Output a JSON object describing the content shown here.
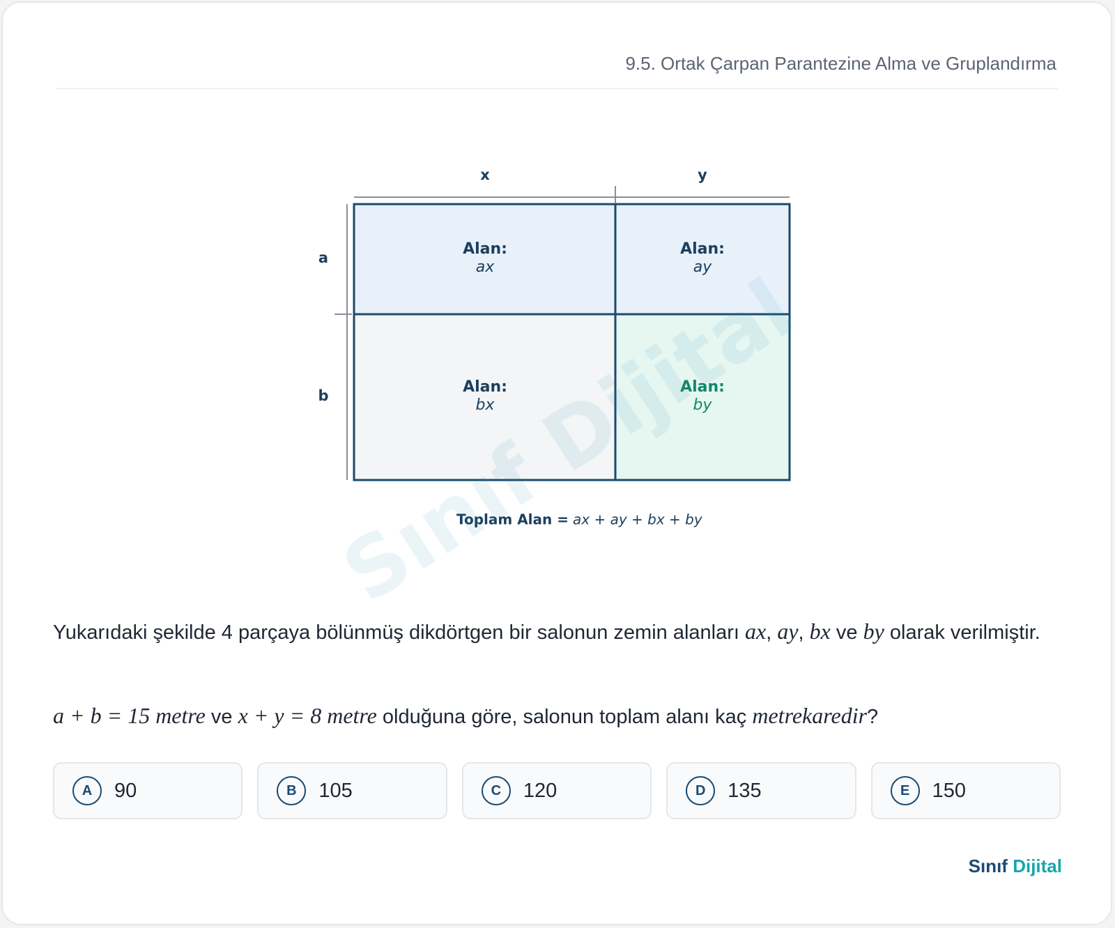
{
  "header": {
    "section": "9.5. Ortak Çarpan Parantezine Alma ve Gruplandırma"
  },
  "figure": {
    "top_labels": [
      "x",
      "y"
    ],
    "side_labels": [
      "a",
      "b"
    ],
    "cells": [
      {
        "title": "Alan:",
        "expr": "ax",
        "color": "#1b3f5e"
      },
      {
        "title": "Alan:",
        "expr": "ay",
        "color": "#1b3f5e"
      },
      {
        "title": "Alan:",
        "expr": "bx",
        "color": "#1b3f5e"
      },
      {
        "title": "Alan:",
        "expr": "by",
        "color": "#12876a"
      }
    ],
    "total": {
      "label": "Toplam Alan =",
      "expr": "ax + ay + bx + by"
    }
  },
  "watermark": "Sınıf Dijital",
  "question": {
    "paragraphs": [
      [
        {
          "text": "Yukarıdaki şekilde 4 parçaya bölünmüş dikdörtgen bir salonun zemin alanları ",
          "math": false
        },
        {
          "text": "ax",
          "math": true
        },
        {
          "text": ", ",
          "math": false
        },
        {
          "text": "ay",
          "math": true
        },
        {
          "text": ", ",
          "math": false
        },
        {
          "text": "bx",
          "math": true
        },
        {
          "text": " ve ",
          "math": false
        },
        {
          "text": "by",
          "math": true
        },
        {
          "text": " olarak verilmiştir.",
          "math": false
        }
      ],
      [
        {
          "text": "a + b = 15 metre",
          "math": true
        },
        {
          "text": " ve ",
          "math": false
        },
        {
          "text": "x + y = 8 metre",
          "math": true
        },
        {
          "text": " olduğuna göre, salonun toplam alanı kaç ",
          "math": false
        },
        {
          "text": "metrekaredir",
          "math": true
        },
        {
          "text": "?",
          "math": false
        }
      ]
    ]
  },
  "options": [
    {
      "letter": "A",
      "value": 90
    },
    {
      "letter": "B",
      "value": 105
    },
    {
      "letter": "C",
      "value": 120
    },
    {
      "letter": "D",
      "value": 135
    },
    {
      "letter": "E",
      "value": 150
    }
  ],
  "brand": [
    "Sınıf",
    "Dijital"
  ]
}
